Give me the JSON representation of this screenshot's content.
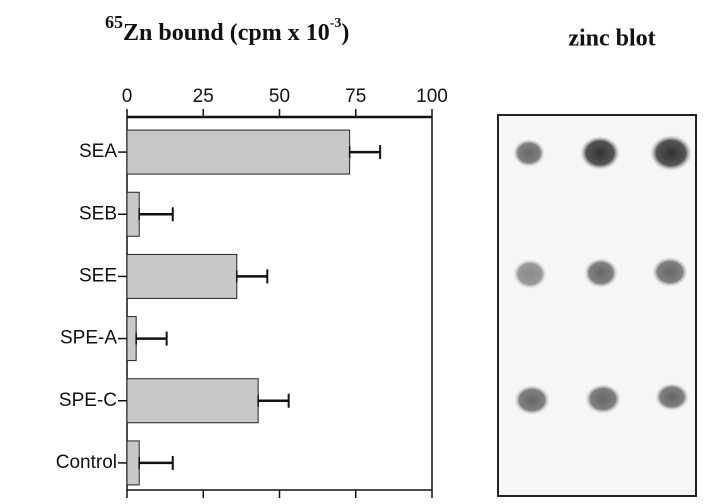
{
  "chart_data": {
    "type": "bar",
    "orientation": "horizontal",
    "title_prefix": "65",
    "title": "Zn bound (cpm x 10",
    "title_exponent": "-3",
    "title_suffix": ")",
    "categories": [
      "SEA",
      "SEB",
      "SEE",
      "SPE-A",
      "SPE-C",
      "Control"
    ],
    "values": [
      73,
      4,
      36,
      3,
      43,
      4
    ],
    "errors": [
      10,
      11,
      10,
      10,
      10,
      11
    ],
    "color": "#c8c8c8",
    "xlim": [
      0,
      100
    ],
    "xticks": [
      0,
      25,
      50,
      75,
      100
    ],
    "grid": false,
    "panel_title": "zinc blot"
  }
}
